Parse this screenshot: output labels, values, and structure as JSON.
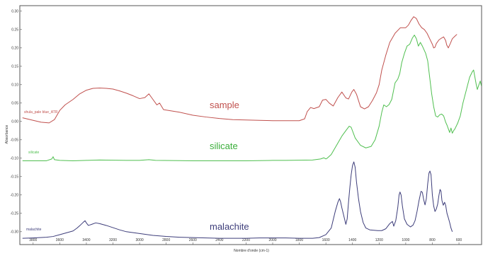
{
  "chart_data": {
    "type": "line",
    "xlabel": "Nombre d'onde (cm-1)",
    "ylabel": "Absorbance",
    "xlim": [
      3900,
      430
    ],
    "ylim": [
      -0.335,
      0.315
    ],
    "x_ticks": [
      3800,
      3600,
      3400,
      3200,
      3000,
      2800,
      2600,
      2400,
      2200,
      2000,
      1800,
      1600,
      1400,
      1200,
      1000,
      800,
      600
    ],
    "x_tick_labels": [
      "3800",
      "3600",
      "3400",
      "3200",
      "3000",
      "2800",
      "2600",
      "2400",
      "2200",
      "2000",
      "1800",
      "1600",
      "1400",
      "1200",
      "1000",
      "800",
      "600"
    ],
    "y_ticks": [
      0.3,
      0.25,
      0.2,
      0.15,
      0.1,
      0.05,
      0.0,
      -0.05,
      -0.1,
      -0.15,
      -0.2,
      -0.25,
      -0.3
    ],
    "y_tick_labels": [
      "0.30",
      "0.25",
      "0.20",
      "0.15",
      "0.10",
      "0.05",
      "0.00",
      "-0.05",
      "-0.10",
      "-0.15",
      "-0.20",
      "-0.25",
      "-0.30"
    ],
    "grid": false,
    "series": [
      {
        "name": "shula_pale blue_ATR",
        "label": "sample",
        "color": "#c0504d",
        "points": [
          [
            3880,
            0.01
          ],
          [
            3800,
            0.003
          ],
          [
            3740,
            -0.002
          ],
          [
            3680,
            -0.004
          ],
          [
            3640,
            0.005
          ],
          [
            3600,
            0.03
          ],
          [
            3560,
            0.045
          ],
          [
            3500,
            0.06
          ],
          [
            3450,
            0.075
          ],
          [
            3400,
            0.085
          ],
          [
            3350,
            0.09
          ],
          [
            3300,
            0.091
          ],
          [
            3250,
            0.09
          ],
          [
            3200,
            0.088
          ],
          [
            3150,
            0.083
          ],
          [
            3100,
            0.077
          ],
          [
            3050,
            0.07
          ],
          [
            3000,
            0.062
          ],
          [
            2960,
            0.065
          ],
          [
            2930,
            0.075
          ],
          [
            2910,
            0.065
          ],
          [
            2870,
            0.045
          ],
          [
            2850,
            0.05
          ],
          [
            2820,
            0.032
          ],
          [
            2700,
            0.025
          ],
          [
            2600,
            0.017
          ],
          [
            2500,
            0.012
          ],
          [
            2400,
            0.008
          ],
          [
            2300,
            0.005
          ],
          [
            2200,
            0.004
          ],
          [
            2100,
            0.003
          ],
          [
            2000,
            0.002
          ],
          [
            1900,
            0.002
          ],
          [
            1800,
            0.002
          ],
          [
            1760,
            0.007
          ],
          [
            1740,
            0.027
          ],
          [
            1715,
            0.038
          ],
          [
            1690,
            0.035
          ],
          [
            1650,
            0.04
          ],
          [
            1625,
            0.058
          ],
          [
            1600,
            0.06
          ],
          [
            1575,
            0.05
          ],
          [
            1545,
            0.042
          ],
          [
            1510,
            0.065
          ],
          [
            1480,
            0.08
          ],
          [
            1450,
            0.064
          ],
          [
            1430,
            0.061
          ],
          [
            1405,
            0.08
          ],
          [
            1390,
            0.087
          ],
          [
            1370,
            0.074
          ],
          [
            1340,
            0.04
          ],
          [
            1310,
            0.034
          ],
          [
            1280,
            0.04
          ],
          [
            1250,
            0.057
          ],
          [
            1220,
            0.078
          ],
          [
            1200,
            0.1
          ],
          [
            1180,
            0.14
          ],
          [
            1150,
            0.18
          ],
          [
            1120,
            0.215
          ],
          [
            1080,
            0.24
          ],
          [
            1040,
            0.255
          ],
          [
            1000,
            0.255
          ],
          [
            980,
            0.262
          ],
          [
            960,
            0.275
          ],
          [
            940,
            0.285
          ],
          [
            920,
            0.28
          ],
          [
            900,
            0.265
          ],
          [
            880,
            0.255
          ],
          [
            860,
            0.25
          ],
          [
            840,
            0.24
          ],
          [
            820,
            0.225
          ],
          [
            800,
            0.21
          ],
          [
            790,
            0.2
          ],
          [
            780,
            0.202
          ],
          [
            770,
            0.212
          ],
          [
            750,
            0.222
          ],
          [
            730,
            0.227
          ],
          [
            715,
            0.23
          ],
          [
            700,
            0.22
          ],
          [
            692,
            0.208
          ],
          [
            680,
            0.2
          ],
          [
            665,
            0.212
          ],
          [
            650,
            0.225
          ],
          [
            630,
            0.232
          ],
          [
            615,
            0.237
          ]
        ]
      },
      {
        "name": "silicate",
        "label": "silicate",
        "color": "#4fbf4f",
        "points": [
          [
            3880,
            -0.107
          ],
          [
            3800,
            -0.107
          ],
          [
            3700,
            -0.107
          ],
          [
            3660,
            -0.102
          ],
          [
            3650,
            -0.096
          ],
          [
            3640,
            -0.104
          ],
          [
            3600,
            -0.106
          ],
          [
            3500,
            -0.107
          ],
          [
            3400,
            -0.106
          ],
          [
            3300,
            -0.105
          ],
          [
            3100,
            -0.106
          ],
          [
            3000,
            -0.106
          ],
          [
            2930,
            -0.104
          ],
          [
            2880,
            -0.106
          ],
          [
            2600,
            -0.107
          ],
          [
            2400,
            -0.107
          ],
          [
            2200,
            -0.107
          ],
          [
            2000,
            -0.106
          ],
          [
            1900,
            -0.106
          ],
          [
            1700,
            -0.105
          ],
          [
            1640,
            -0.102
          ],
          [
            1615,
            -0.099
          ],
          [
            1600,
            -0.102
          ],
          [
            1590,
            -0.1
          ],
          [
            1560,
            -0.09
          ],
          [
            1520,
            -0.065
          ],
          [
            1480,
            -0.04
          ],
          [
            1450,
            -0.025
          ],
          [
            1425,
            -0.013
          ],
          [
            1410,
            -0.016
          ],
          [
            1380,
            -0.045
          ],
          [
            1340,
            -0.065
          ],
          [
            1300,
            -0.072
          ],
          [
            1260,
            -0.068
          ],
          [
            1230,
            -0.05
          ],
          [
            1200,
            -0.013
          ],
          [
            1180,
            0.025
          ],
          [
            1165,
            0.045
          ],
          [
            1145,
            0.04
          ],
          [
            1125,
            0.046
          ],
          [
            1105,
            0.06
          ],
          [
            1080,
            0.105
          ],
          [
            1060,
            0.115
          ],
          [
            1045,
            0.13
          ],
          [
            1030,
            0.16
          ],
          [
            1010,
            0.185
          ],
          [
            990,
            0.205
          ],
          [
            970,
            0.21
          ],
          [
            950,
            0.227
          ],
          [
            935,
            0.235
          ],
          [
            920,
            0.225
          ],
          [
            905,
            0.205
          ],
          [
            890,
            0.215
          ],
          [
            875,
            0.205
          ],
          [
            850,
            0.185
          ],
          [
            835,
            0.165
          ],
          [
            820,
            0.12
          ],
          [
            805,
            0.075
          ],
          [
            790,
            0.04
          ],
          [
            775,
            0.015
          ],
          [
            760,
            0.012
          ],
          [
            745,
            0.018
          ],
          [
            730,
            0.02
          ],
          [
            715,
            0.015
          ],
          [
            700,
            -0.002
          ],
          [
            690,
            -0.01
          ],
          [
            680,
            -0.02
          ],
          [
            670,
            -0.03
          ],
          [
            660,
            -0.018
          ],
          [
            650,
            -0.032
          ],
          [
            640,
            -0.025
          ],
          [
            630,
            -0.02
          ],
          [
            610,
            -0.005
          ],
          [
            590,
            0.015
          ],
          [
            570,
            0.05
          ],
          [
            545,
            0.085
          ],
          [
            520,
            0.12
          ],
          [
            500,
            0.135
          ],
          [
            490,
            0.14
          ],
          [
            480,
            0.12
          ],
          [
            470,
            0.1
          ],
          [
            462,
            0.087
          ],
          [
            450,
            0.1
          ],
          [
            440,
            0.11
          ],
          [
            432,
            0.097
          ]
        ]
      },
      {
        "name": "malachite",
        "label": "malachite",
        "color": "#3d3d7a",
        "points": [
          [
            3880,
            -0.318
          ],
          [
            3800,
            -0.317
          ],
          [
            3700,
            -0.315
          ],
          [
            3650,
            -0.313
          ],
          [
            3600,
            -0.308
          ],
          [
            3550,
            -0.303
          ],
          [
            3500,
            -0.298
          ],
          [
            3470,
            -0.29
          ],
          [
            3445,
            -0.282
          ],
          [
            3425,
            -0.275
          ],
          [
            3410,
            -0.27
          ],
          [
            3400,
            -0.276
          ],
          [
            3385,
            -0.283
          ],
          [
            3360,
            -0.28
          ],
          [
            3330,
            -0.276
          ],
          [
            3300,
            -0.278
          ],
          [
            3250,
            -0.283
          ],
          [
            3200,
            -0.289
          ],
          [
            3150,
            -0.295
          ],
          [
            3100,
            -0.3
          ],
          [
            3000,
            -0.305
          ],
          [
            2900,
            -0.31
          ],
          [
            2800,
            -0.313
          ],
          [
            2700,
            -0.315
          ],
          [
            2600,
            -0.316
          ],
          [
            2500,
            -0.317
          ],
          [
            2400,
            -0.318
          ],
          [
            2300,
            -0.318
          ],
          [
            2200,
            -0.318
          ],
          [
            2100,
            -0.317
          ],
          [
            2000,
            -0.317
          ],
          [
            1900,
            -0.317
          ],
          [
            1800,
            -0.318
          ],
          [
            1700,
            -0.318
          ],
          [
            1650,
            -0.316
          ],
          [
            1600,
            -0.308
          ],
          [
            1560,
            -0.29
          ],
          [
            1530,
            -0.245
          ],
          [
            1510,
            -0.22
          ],
          [
            1498,
            -0.21
          ],
          [
            1490,
            -0.218
          ],
          [
            1480,
            -0.235
          ],
          [
            1470,
            -0.25
          ],
          [
            1460,
            -0.265
          ],
          [
            1450,
            -0.28
          ],
          [
            1440,
            -0.265
          ],
          [
            1430,
            -0.22
          ],
          [
            1420,
            -0.18
          ],
          [
            1410,
            -0.145
          ],
          [
            1400,
            -0.12
          ],
          [
            1390,
            -0.11
          ],
          [
            1380,
            -0.125
          ],
          [
            1370,
            -0.165
          ],
          [
            1355,
            -0.21
          ],
          [
            1340,
            -0.245
          ],
          [
            1320,
            -0.275
          ],
          [
            1300,
            -0.29
          ],
          [
            1270,
            -0.295
          ],
          [
            1240,
            -0.296
          ],
          [
            1210,
            -0.297
          ],
          [
            1180,
            -0.297
          ],
          [
            1150,
            -0.292
          ],
          [
            1120,
            -0.278
          ],
          [
            1100,
            -0.272
          ],
          [
            1090,
            -0.285
          ],
          [
            1075,
            -0.27
          ],
          [
            1060,
            -0.235
          ],
          [
            1050,
            -0.2
          ],
          [
            1043,
            -0.192
          ],
          [
            1035,
            -0.2
          ],
          [
            1025,
            -0.23
          ],
          [
            1010,
            -0.265
          ],
          [
            990,
            -0.28
          ],
          [
            965,
            -0.287
          ],
          [
            945,
            -0.282
          ],
          [
            930,
            -0.27
          ],
          [
            915,
            -0.245
          ],
          [
            900,
            -0.215
          ],
          [
            885,
            -0.19
          ],
          [
            875,
            -0.193
          ],
          [
            865,
            -0.213
          ],
          [
            855,
            -0.227
          ],
          [
            845,
            -0.21
          ],
          [
            835,
            -0.17
          ],
          [
            825,
            -0.14
          ],
          [
            818,
            -0.135
          ],
          [
            810,
            -0.145
          ],
          [
            800,
            -0.2
          ],
          [
            790,
            -0.23
          ],
          [
            780,
            -0.245
          ],
          [
            770,
            -0.238
          ],
          [
            760,
            -0.225
          ],
          [
            750,
            -0.2
          ],
          [
            742,
            -0.185
          ],
          [
            735,
            -0.19
          ],
          [
            728,
            -0.215
          ],
          [
            718,
            -0.228
          ],
          [
            708,
            -0.22
          ],
          [
            700,
            -0.228
          ],
          [
            690,
            -0.25
          ],
          [
            680,
            -0.262
          ],
          [
            670,
            -0.275
          ],
          [
            660,
            -0.29
          ],
          [
            650,
            -0.3
          ]
        ]
      }
    ],
    "annotations": {
      "sample_label": "sample",
      "silicate_label": "silicate",
      "malachite_label": "malachite",
      "sample_file_label": "shula_pale blue_ATR",
      "silicate_file_label": "silicate",
      "malachite_file_label": "malachite"
    }
  },
  "style": {
    "frame_color": "#555555",
    "axis_text_color": "#333333"
  }
}
